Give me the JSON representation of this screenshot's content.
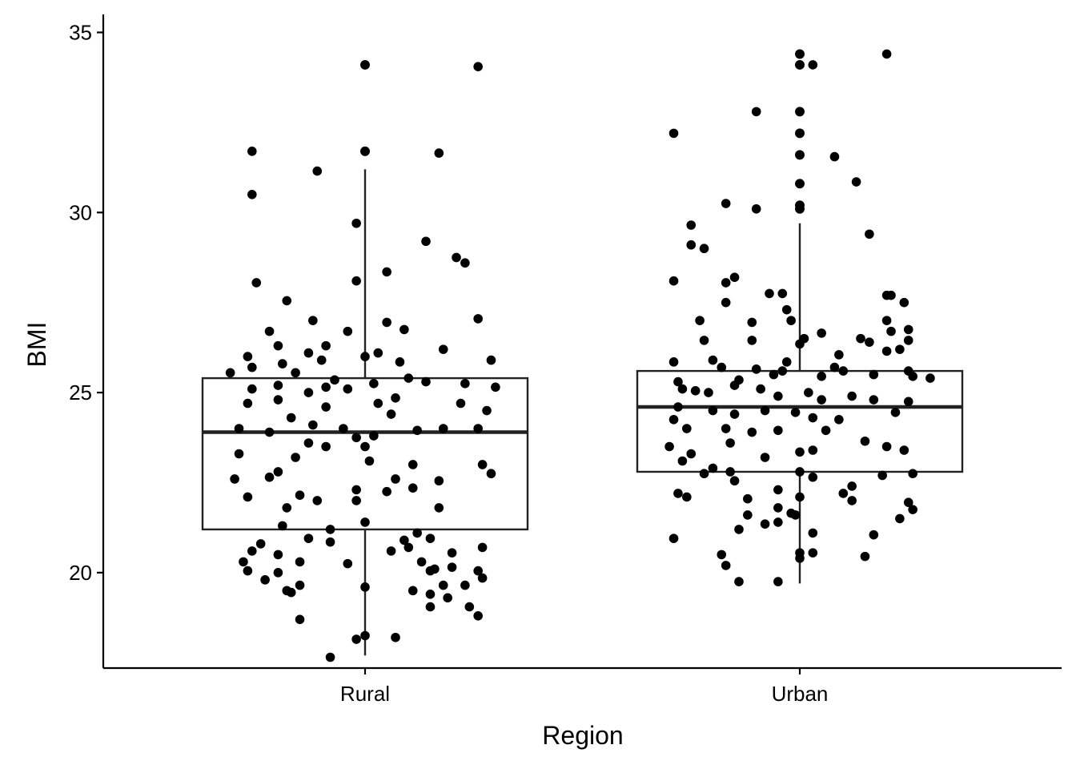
{
  "chart_data": {
    "type": "box",
    "title": "",
    "xlabel": "Region",
    "ylabel": "BMI",
    "ylim": [
      17.35,
      35.5
    ],
    "yticks": [
      20,
      25,
      30,
      35
    ],
    "grid": false,
    "legend": "none",
    "categories": [
      "Rural",
      "Urban"
    ],
    "colors": {
      "box_stroke": "#222222",
      "point": "#000000",
      "axis": "#000000",
      "background": "#ffffff"
    },
    "boxes": [
      {
        "category": "Rural",
        "q1": 21.2,
        "median": 23.9,
        "q3": 25.4,
        "whisker_low": 17.7,
        "whisker_high": 31.2,
        "outliers": [
          31.7,
          34.1
        ]
      },
      {
        "category": "Urban",
        "q1": 22.8,
        "median": 24.6,
        "q3": 25.6,
        "whisker_low": 19.7,
        "whisker_high": 29.7,
        "outliers": [
          30.1,
          30.2,
          30.8,
          31.6,
          32.2,
          32.8,
          34.1,
          34.4
        ]
      }
    ],
    "points": {
      "Rural": [
        [
          0.0,
          34.1
        ],
        [
          0.26,
          34.05
        ],
        [
          -0.26,
          31.7
        ],
        [
          0.0,
          31.7
        ],
        [
          0.17,
          31.65
        ],
        [
          -0.11,
          31.15
        ],
        [
          -0.26,
          30.5
        ],
        [
          -0.02,
          29.7
        ],
        [
          0.14,
          29.2
        ],
        [
          0.21,
          28.75
        ],
        [
          0.23,
          28.6
        ],
        [
          -0.25,
          28.05
        ],
        [
          -0.02,
          28.1
        ],
        [
          0.05,
          28.35
        ],
        [
          -0.18,
          27.55
        ],
        [
          -0.12,
          27.0
        ],
        [
          0.05,
          26.95
        ],
        [
          0.26,
          27.05
        ],
        [
          0.09,
          26.75
        ],
        [
          -0.22,
          26.7
        ],
        [
          -0.04,
          26.7
        ],
        [
          -0.2,
          26.3
        ],
        [
          -0.09,
          26.3
        ],
        [
          -0.13,
          26.1
        ],
        [
          0.03,
          26.1
        ],
        [
          0.18,
          26.2
        ],
        [
          0.0,
          26.0
        ],
        [
          -0.27,
          26.0
        ],
        [
          0.29,
          25.9
        ],
        [
          -0.26,
          25.7
        ],
        [
          -0.19,
          25.8
        ],
        [
          0.08,
          25.85
        ],
        [
          -0.1,
          25.9
        ],
        [
          -0.31,
          25.55
        ],
        [
          -0.16,
          25.55
        ],
        [
          0.1,
          25.4
        ],
        [
          -0.07,
          25.35
        ],
        [
          0.14,
          25.3
        ],
        [
          0.23,
          25.25
        ],
        [
          -0.2,
          25.2
        ],
        [
          -0.09,
          25.15
        ],
        [
          0.02,
          25.25
        ],
        [
          -0.26,
          25.1
        ],
        [
          -0.04,
          25.1
        ],
        [
          0.3,
          25.15
        ],
        [
          -0.13,
          25.0
        ],
        [
          0.07,
          24.85
        ],
        [
          -0.27,
          24.7
        ],
        [
          -0.2,
          24.8
        ],
        [
          -0.09,
          24.6
        ],
        [
          0.03,
          24.7
        ],
        [
          0.22,
          24.7
        ],
        [
          0.28,
          24.5
        ],
        [
          -0.17,
          24.3
        ],
        [
          0.06,
          24.4
        ],
        [
          -0.12,
          24.1
        ],
        [
          -0.05,
          24.0
        ],
        [
          0.12,
          23.95
        ],
        [
          -0.29,
          24.0
        ],
        [
          0.18,
          24.0
        ],
        [
          0.26,
          24.0
        ],
        [
          -0.22,
          23.9
        ],
        [
          -0.02,
          23.75
        ],
        [
          0.02,
          23.8
        ],
        [
          -0.13,
          23.6
        ],
        [
          -0.09,
          23.5
        ],
        [
          0.0,
          23.5
        ],
        [
          -0.29,
          23.3
        ],
        [
          -0.16,
          23.2
        ],
        [
          0.01,
          23.1
        ],
        [
          0.11,
          23.0
        ],
        [
          0.27,
          23.0
        ],
        [
          -0.2,
          22.8
        ],
        [
          0.29,
          22.75
        ],
        [
          -0.22,
          22.65
        ],
        [
          0.07,
          22.6
        ],
        [
          0.17,
          22.55
        ],
        [
          -0.3,
          22.6
        ],
        [
          0.11,
          22.35
        ],
        [
          -0.02,
          22.3
        ],
        [
          0.05,
          22.25
        ],
        [
          -0.15,
          22.15
        ],
        [
          -0.27,
          22.1
        ],
        [
          -0.11,
          22.0
        ],
        [
          -0.02,
          22.0
        ],
        [
          0.17,
          21.8
        ],
        [
          -0.18,
          21.8
        ],
        [
          0.0,
          21.4
        ],
        [
          -0.19,
          21.3
        ],
        [
          -0.08,
          21.2
        ],
        [
          0.12,
          21.1
        ],
        [
          -0.13,
          20.95
        ],
        [
          0.09,
          20.9
        ],
        [
          -0.08,
          20.85
        ],
        [
          0.15,
          20.95
        ],
        [
          0.1,
          20.7
        ],
        [
          0.27,
          20.7
        ],
        [
          -0.24,
          20.8
        ],
        [
          0.06,
          20.6
        ],
        [
          0.2,
          20.55
        ],
        [
          -0.26,
          20.6
        ],
        [
          -0.2,
          20.5
        ],
        [
          -0.28,
          20.3
        ],
        [
          -0.15,
          20.3
        ],
        [
          -0.04,
          20.25
        ],
        [
          0.13,
          20.3
        ],
        [
          0.16,
          20.1
        ],
        [
          0.2,
          20.15
        ],
        [
          0.26,
          20.05
        ],
        [
          -0.27,
          20.05
        ],
        [
          -0.2,
          20.0
        ],
        [
          0.15,
          20.05
        ],
        [
          0.27,
          19.85
        ],
        [
          -0.23,
          19.8
        ],
        [
          0.23,
          19.65
        ],
        [
          0.18,
          19.65
        ],
        [
          -0.15,
          19.65
        ],
        [
          0.0,
          19.6
        ],
        [
          -0.18,
          19.5
        ],
        [
          0.11,
          19.5
        ],
        [
          -0.17,
          19.45
        ],
        [
          0.15,
          19.4
        ],
        [
          0.19,
          19.3
        ],
        [
          0.24,
          19.05
        ],
        [
          0.15,
          19.05
        ],
        [
          0.26,
          18.8
        ],
        [
          -0.15,
          18.7
        ],
        [
          0.07,
          18.2
        ],
        [
          0.0,
          18.25
        ],
        [
          -0.02,
          18.15
        ],
        [
          -0.08,
          17.65
        ]
      ],
      "Urban": [
        [
          0.0,
          34.4
        ],
        [
          0.2,
          34.4
        ],
        [
          0.0,
          34.1
        ],
        [
          0.03,
          34.1
        ],
        [
          -0.1,
          32.8
        ],
        [
          0.0,
          32.8
        ],
        [
          -0.29,
          32.2
        ],
        [
          0.0,
          32.2
        ],
        [
          0.0,
          31.6
        ],
        [
          0.08,
          31.55
        ],
        [
          0.0,
          30.8
        ],
        [
          0.13,
          30.85
        ],
        [
          -0.17,
          30.25
        ],
        [
          -0.1,
          30.1
        ],
        [
          0.0,
          30.2
        ],
        [
          0.0,
          30.1
        ],
        [
          -0.25,
          29.65
        ],
        [
          -0.25,
          29.1
        ],
        [
          -0.22,
          29.0
        ],
        [
          0.16,
          29.4
        ],
        [
          -0.29,
          28.1
        ],
        [
          -0.17,
          28.05
        ],
        [
          -0.15,
          28.2
        ],
        [
          -0.17,
          27.5
        ],
        [
          -0.07,
          27.75
        ],
        [
          -0.04,
          27.75
        ],
        [
          0.2,
          27.7
        ],
        [
          0.21,
          27.7
        ],
        [
          0.24,
          27.5
        ],
        [
          -0.23,
          27.0
        ],
        [
          -0.11,
          26.95
        ],
        [
          -0.02,
          27.0
        ],
        [
          -0.03,
          27.3
        ],
        [
          0.2,
          27.0
        ],
        [
          0.25,
          26.75
        ],
        [
          0.21,
          26.7
        ],
        [
          0.05,
          26.65
        ],
        [
          0.14,
          26.5
        ],
        [
          0.16,
          26.4
        ],
        [
          0.25,
          26.45
        ],
        [
          -0.22,
          26.45
        ],
        [
          -0.11,
          26.45
        ],
        [
          0.0,
          26.35
        ],
        [
          0.01,
          26.5
        ],
        [
          0.09,
          26.05
        ],
        [
          0.2,
          26.15
        ],
        [
          0.23,
          26.2
        ],
        [
          -0.29,
          25.85
        ],
        [
          -0.2,
          25.9
        ],
        [
          -0.18,
          25.7
        ],
        [
          -0.1,
          25.65
        ],
        [
          -0.06,
          25.5
        ],
        [
          -0.04,
          25.6
        ],
        [
          -0.03,
          25.85
        ],
        [
          0.05,
          25.45
        ],
        [
          0.08,
          25.7
        ],
        [
          0.1,
          25.6
        ],
        [
          0.17,
          25.5
        ],
        [
          0.25,
          25.6
        ],
        [
          0.26,
          25.45
        ],
        [
          0.3,
          25.4
        ],
        [
          -0.28,
          25.3
        ],
        [
          -0.27,
          25.1
        ],
        [
          -0.24,
          25.05
        ],
        [
          -0.21,
          25.0
        ],
        [
          -0.15,
          25.2
        ],
        [
          -0.14,
          25.35
        ],
        [
          -0.09,
          25.1
        ],
        [
          -0.05,
          24.9
        ],
        [
          0.02,
          25.0
        ],
        [
          0.05,
          24.8
        ],
        [
          0.12,
          24.9
        ],
        [
          0.17,
          24.8
        ],
        [
          0.25,
          24.75
        ],
        [
          -0.28,
          24.6
        ],
        [
          -0.2,
          24.5
        ],
        [
          -0.15,
          24.4
        ],
        [
          -0.08,
          24.5
        ],
        [
          -0.01,
          24.45
        ],
        [
          0.03,
          24.3
        ],
        [
          0.09,
          24.25
        ],
        [
          0.22,
          24.45
        ],
        [
          -0.29,
          24.25
        ],
        [
          -0.26,
          24.0
        ],
        [
          -0.17,
          24.0
        ],
        [
          -0.11,
          23.9
        ],
        [
          -0.05,
          23.95
        ],
        [
          0.06,
          23.95
        ],
        [
          0.15,
          23.65
        ],
        [
          0.2,
          23.5
        ],
        [
          -0.3,
          23.5
        ],
        [
          -0.25,
          23.3
        ],
        [
          -0.16,
          23.6
        ],
        [
          -0.08,
          23.2
        ],
        [
          0.0,
          23.35
        ],
        [
          0.03,
          23.4
        ],
        [
          0.24,
          23.4
        ],
        [
          -0.27,
          23.1
        ],
        [
          -0.2,
          22.9
        ],
        [
          -0.16,
          22.8
        ],
        [
          0.0,
          22.8
        ],
        [
          0.03,
          22.65
        ],
        [
          0.19,
          22.7
        ],
        [
          0.26,
          22.75
        ],
        [
          -0.22,
          22.75
        ],
        [
          -0.15,
          22.55
        ],
        [
          -0.05,
          22.3
        ],
        [
          0.0,
          22.1
        ],
        [
          0.1,
          22.2
        ],
        [
          0.12,
          22.4
        ],
        [
          -0.28,
          22.2
        ],
        [
          -0.26,
          22.1
        ],
        [
          -0.12,
          22.05
        ],
        [
          -0.05,
          21.8
        ],
        [
          -0.01,
          21.6
        ],
        [
          0.12,
          22.0
        ],
        [
          0.25,
          21.95
        ],
        [
          0.26,
          21.75
        ],
        [
          -0.12,
          21.6
        ],
        [
          -0.08,
          21.35
        ],
        [
          -0.02,
          21.65
        ],
        [
          -0.14,
          21.2
        ],
        [
          -0.05,
          21.4
        ],
        [
          0.03,
          21.1
        ],
        [
          0.23,
          21.5
        ],
        [
          0.17,
          21.05
        ],
        [
          -0.29,
          20.95
        ],
        [
          -0.18,
          20.5
        ],
        [
          0.0,
          20.55
        ],
        [
          0.03,
          20.55
        ],
        [
          0.15,
          20.45
        ],
        [
          0.0,
          20.4
        ],
        [
          -0.17,
          20.2
        ],
        [
          -0.14,
          19.75
        ],
        [
          -0.05,
          19.75
        ]
      ]
    }
  }
}
